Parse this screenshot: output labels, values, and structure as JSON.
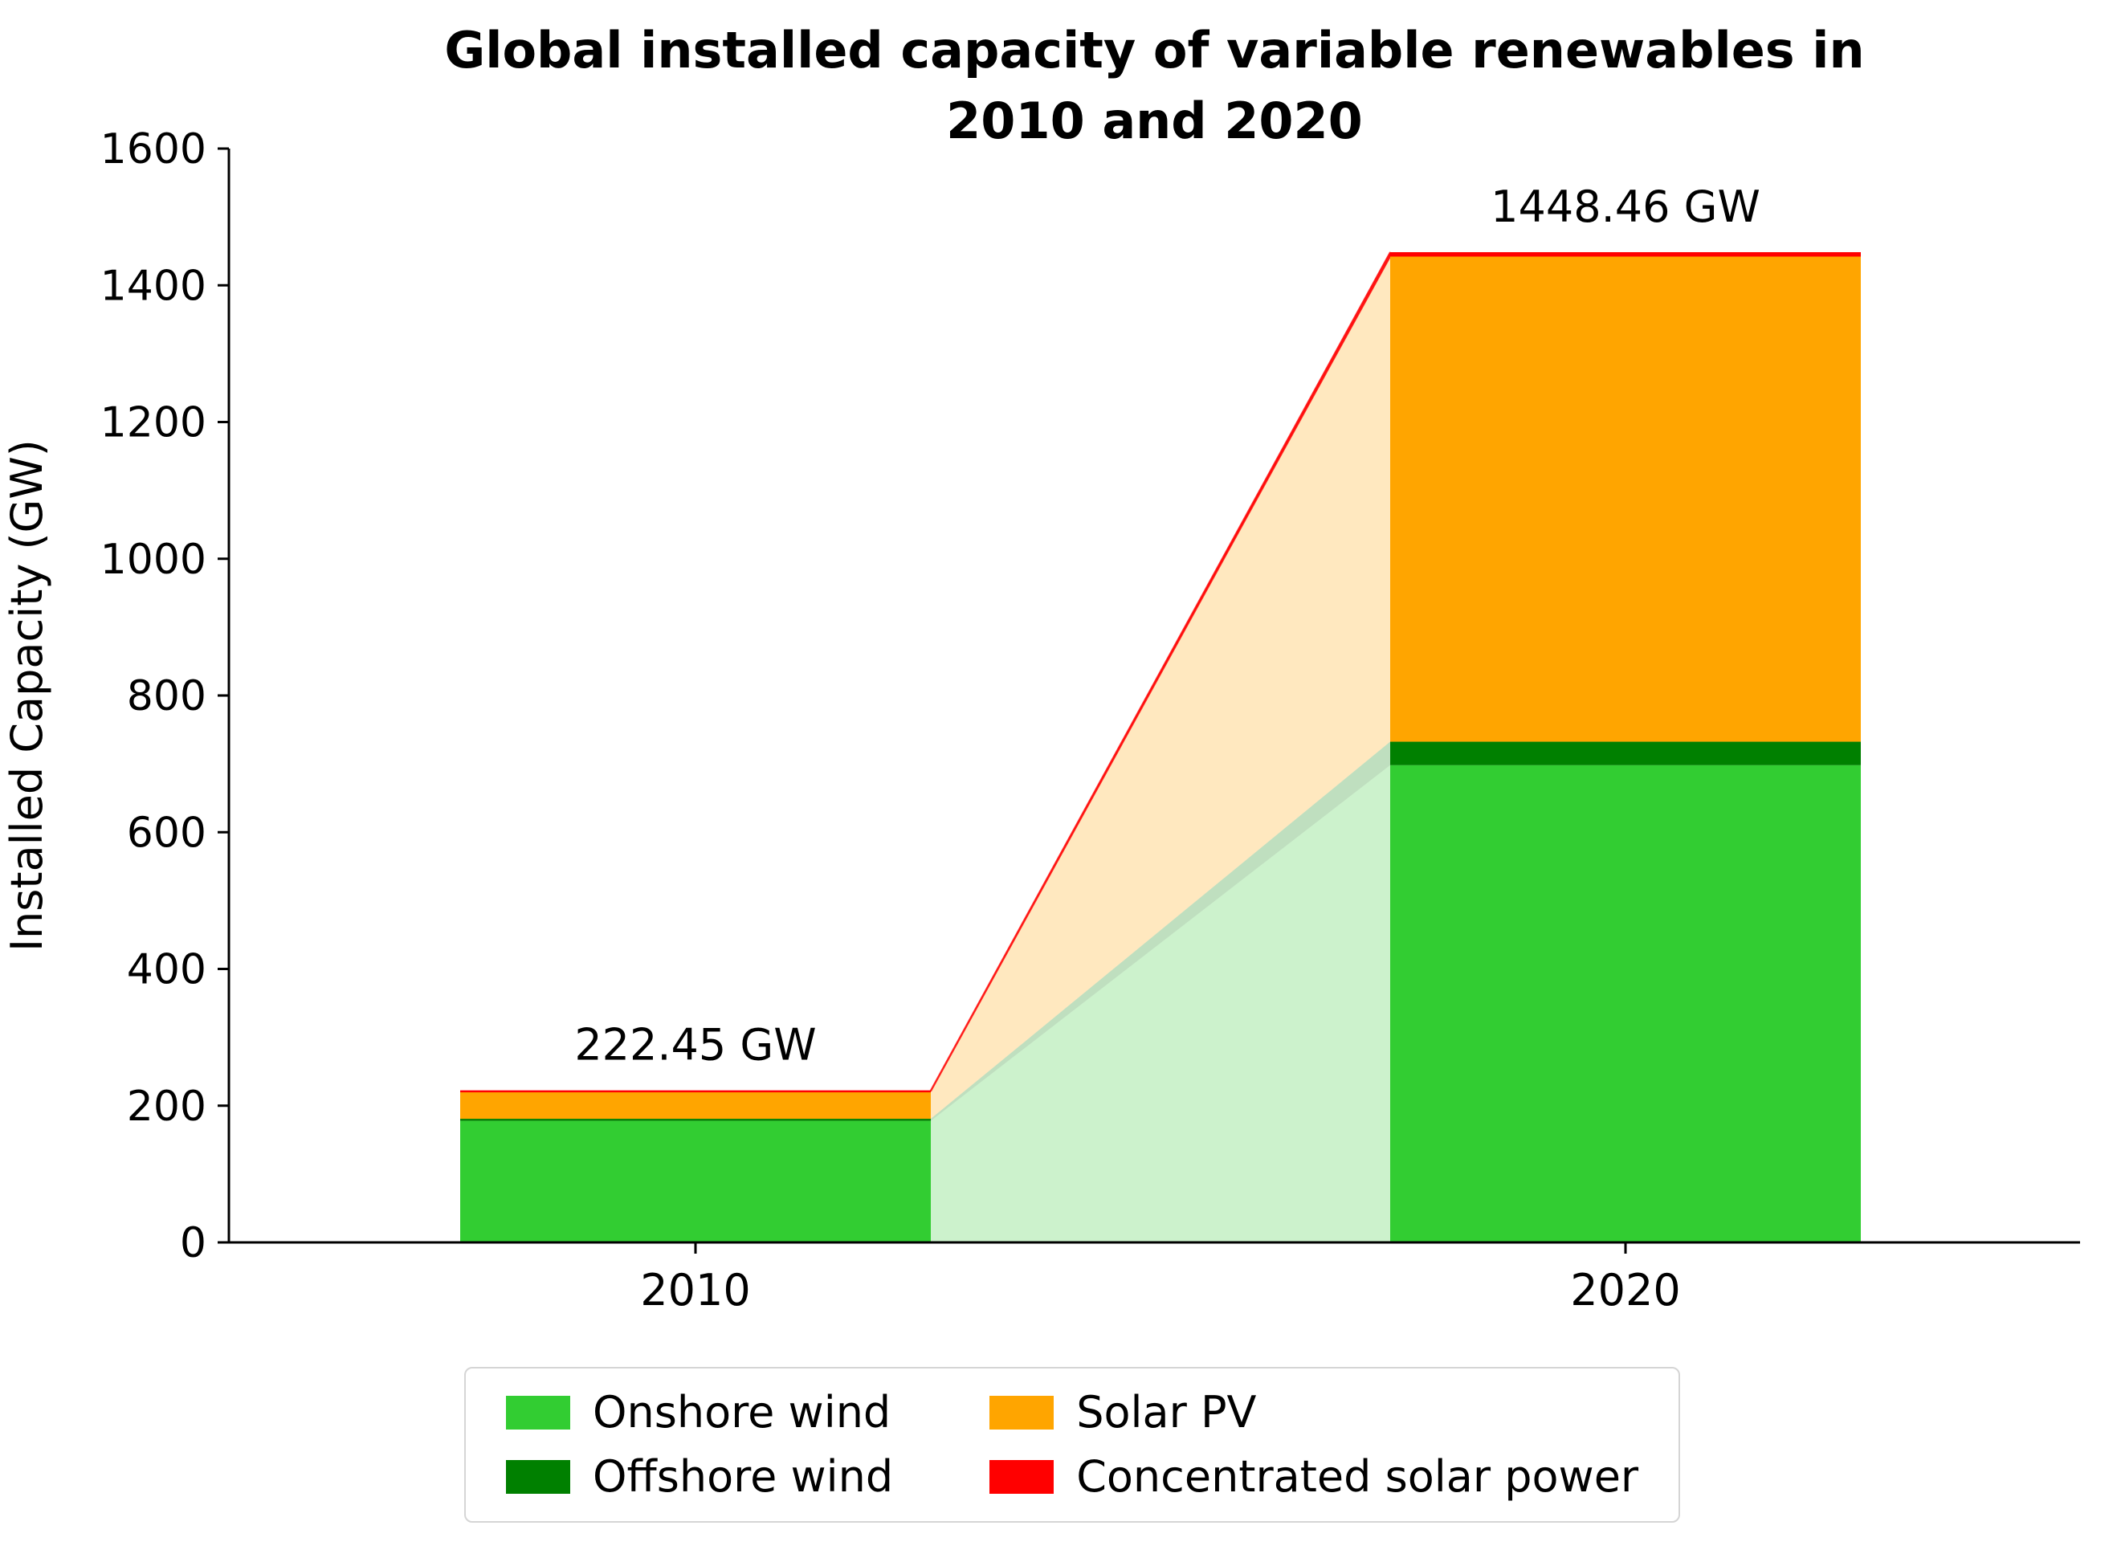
{
  "chart_data": {
    "type": "bar",
    "stacked": true,
    "transitions_between_bars": true,
    "title": "Global installed capacity of variable renewables in 2010 and 2020",
    "title_lines": [
      "Global installed capacity of variable renewables in",
      "2010 and 2020"
    ],
    "xlabel": "",
    "ylabel": "Installed Capacity (GW)",
    "categories": [
      "2010",
      "2020"
    ],
    "series": [
      {
        "name": "Onshore wind",
        "color": "#32CD32",
        "values": [
          177.8,
          698.04
        ]
      },
      {
        "name": "Offshore wind",
        "color": "#008000",
        "values": [
          3.05,
          34.37
        ]
      },
      {
        "name": "Solar PV",
        "color": "#FFA500",
        "values": [
          40.3,
          709.57
        ]
      },
      {
        "name": "Concentrated solar power",
        "color": "#FF0000",
        "values": [
          1.3,
          6.48
        ]
      }
    ],
    "totals": [
      222.45,
      1448.46
    ],
    "total_labels": [
      "222.45 GW",
      "1448.46 GW"
    ],
    "ylim": [
      0,
      1600
    ],
    "yticks": [
      0,
      200,
      400,
      600,
      800,
      1000,
      1200,
      1400,
      1600
    ],
    "grid": false,
    "legend_position": "bottom",
    "legend_entries": [
      "Onshore wind",
      "Offshore wind",
      "Solar PV",
      "Concentrated solar power"
    ],
    "transition_opacity": 0.25,
    "axis_color": "#000000",
    "text_color": "#000000"
  }
}
